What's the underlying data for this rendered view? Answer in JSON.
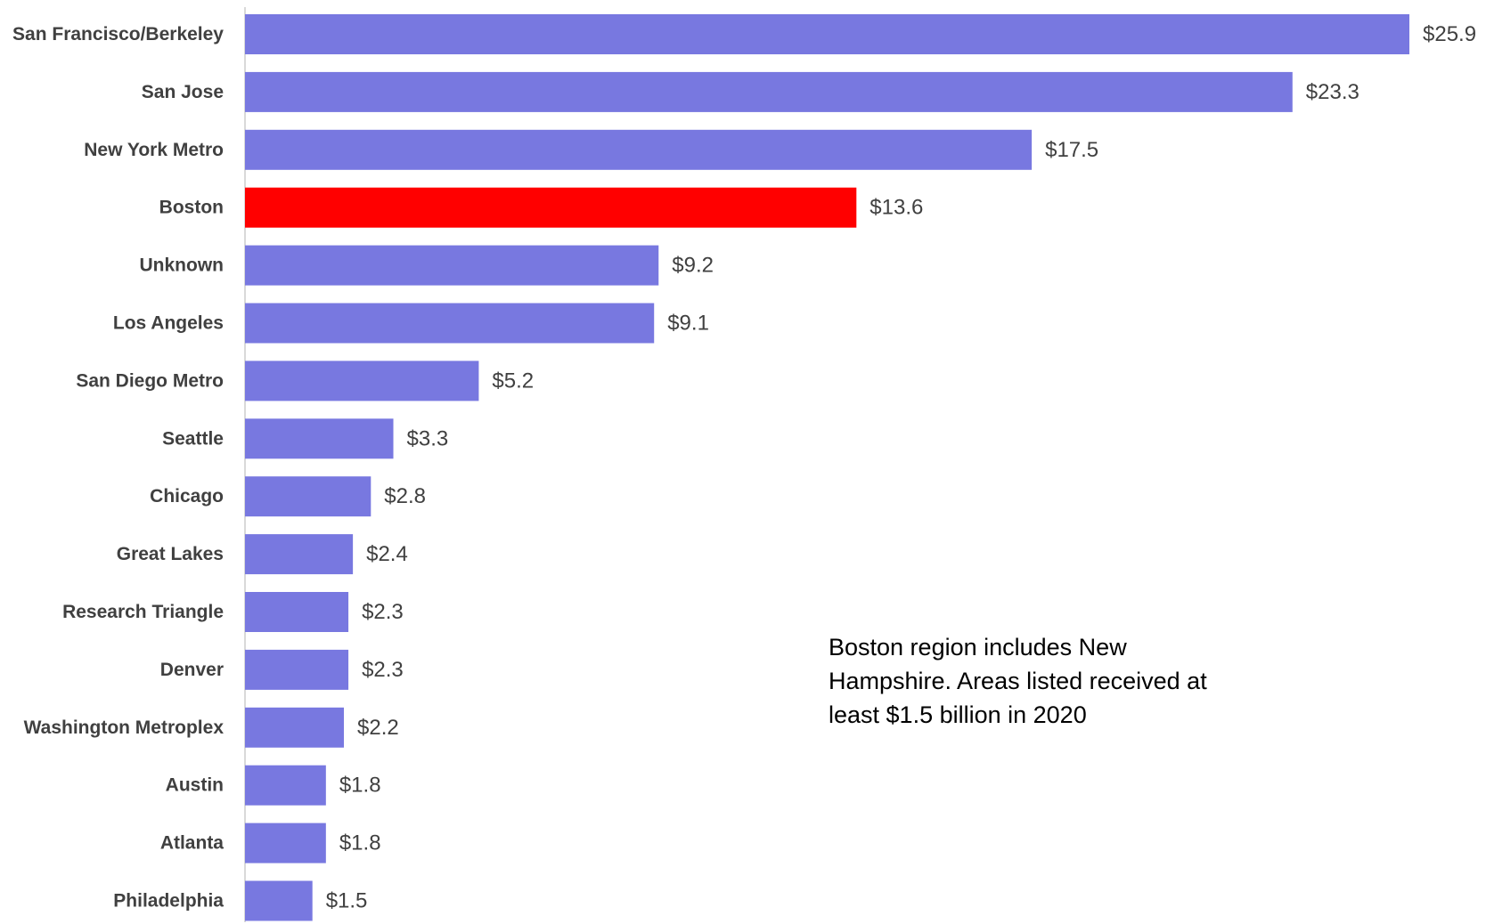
{
  "chart_data": {
    "type": "bar",
    "orientation": "horizontal",
    "title": "",
    "xlabel": "",
    "ylabel": "",
    "categories": [
      "San Francisco/Berkeley",
      "San Jose",
      "New York Metro",
      "Boston",
      "Unknown",
      "Los Angeles",
      "San Diego Metro",
      "Seattle",
      "Chicago",
      "Great Lakes",
      "Research Triangle",
      "Denver",
      "Washington Metroplex",
      "Austin",
      "Atlanta",
      "Philadelphia"
    ],
    "values": [
      25.9,
      23.3,
      17.5,
      13.6,
      9.2,
      9.1,
      5.2,
      3.3,
      2.8,
      2.4,
      2.3,
      2.3,
      2.2,
      1.8,
      1.8,
      1.5
    ],
    "value_labels": [
      "$25.9",
      "$23.3",
      "$17.5",
      "$13.6",
      "$9.2",
      "$9.1",
      "$5.2",
      "$3.3",
      "$2.8",
      "$2.4",
      "$2.3",
      "$2.3",
      "$2.2",
      "$1.8",
      "$1.8",
      "$1.5"
    ],
    "xlim": [
      0,
      25.9
    ],
    "grid": false,
    "legend": "none",
    "colors": {
      "default_bar": "#7878e0",
      "highlight_bar": "#ff0000",
      "axis_line": "#d9d9d9",
      "text": "#404040"
    },
    "highlight_category": "Boston",
    "annotation": "Boston region includes New Hampshire. Areas listed received at least $1.5 billion in 2020"
  }
}
